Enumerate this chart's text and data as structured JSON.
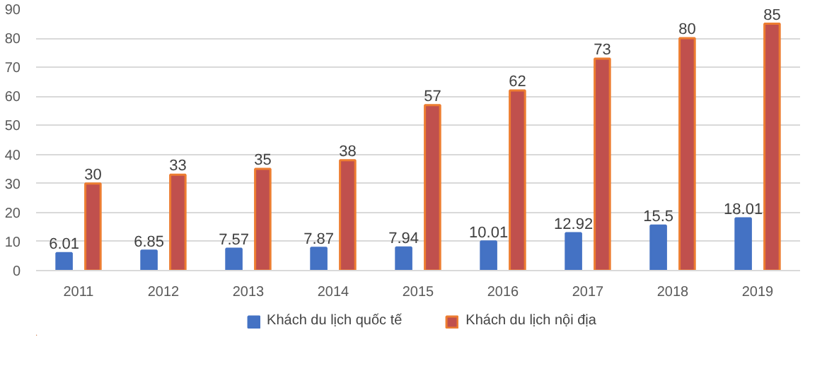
{
  "chart_data": {
    "type": "bar",
    "categories": [
      "2011",
      "2012",
      "2013",
      "2014",
      "2015",
      "2016",
      "2017",
      "2018",
      "2019"
    ],
    "series": [
      {
        "name": "Khách du lịch quốc tế",
        "color": "#4472c4",
        "values": [
          6.01,
          6.85,
          7.57,
          7.87,
          7.94,
          10.01,
          12.92,
          15.5,
          18.01
        ]
      },
      {
        "name": "Khách du lịch nội địa",
        "color": "#c0504d",
        "values": [
          30,
          33,
          35,
          38,
          57,
          62,
          73,
          80,
          85
        ]
      }
    ],
    "ylim": [
      0,
      90
    ],
    "yticks": [
      0,
      10,
      20,
      30,
      40,
      50,
      60,
      70,
      80,
      90
    ],
    "grid": "y",
    "legend": "bottom",
    "data_labels": true
  }
}
